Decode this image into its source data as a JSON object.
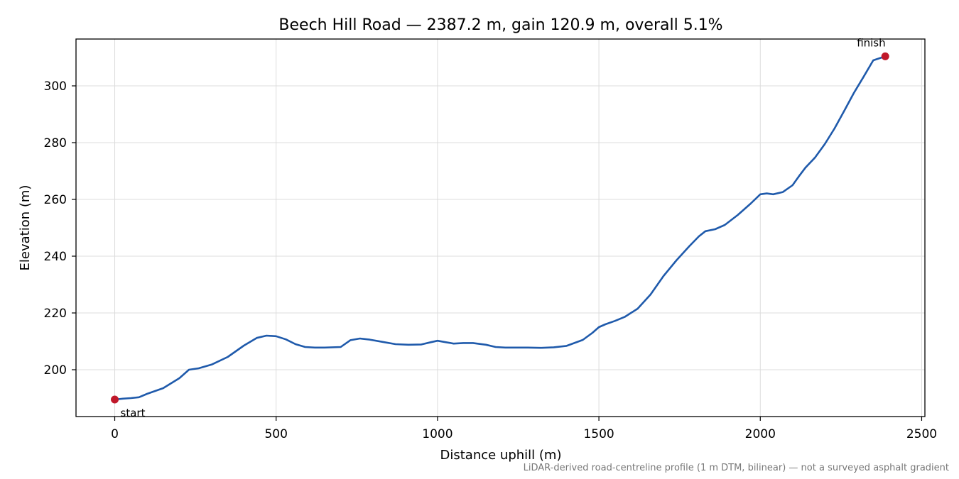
{
  "chart_data": {
    "type": "line",
    "title": "Beech Hill Road — 2387.2 m, gain 120.9 m, overall 5.1%",
    "xlabel": "Distance uphill (m)",
    "ylabel": "Elevation (m)",
    "xlim": [
      -120,
      2510
    ],
    "ylim": [
      183.5,
      316.5
    ],
    "xticks": [
      0,
      500,
      1000,
      1500,
      2000,
      2500
    ],
    "xtick_labels": [
      "0",
      "500",
      "1000",
      "1500",
      "2000",
      "2500"
    ],
    "yticks": [
      200,
      220,
      240,
      260,
      280,
      300
    ],
    "ytick_labels": [
      "200",
      "220",
      "240",
      "260",
      "280",
      "300"
    ],
    "grid": true,
    "line_color": "#1f5aab",
    "marker_color": "#c0182a",
    "series": [
      {
        "x": [
          0,
          25,
          50,
          75,
          100,
          150,
          200,
          230,
          260,
          300,
          350,
          400,
          440,
          470,
          500,
          530,
          560,
          590,
          620,
          650,
          700,
          730,
          760,
          790,
          830,
          870,
          910,
          950,
          980,
          1000,
          1020,
          1050,
          1080,
          1110,
          1150,
          1180,
          1210,
          1240,
          1280,
          1320,
          1360,
          1400,
          1450,
          1480,
          1500,
          1520,
          1550,
          1580,
          1620,
          1660,
          1700,
          1740,
          1780,
          1810,
          1830,
          1860,
          1890,
          1930,
          1970,
          2000,
          2020,
          2040,
          2070,
          2100,
          2120,
          2140,
          2170,
          2200,
          2230,
          2260,
          2290,
          2320,
          2350,
          2387.2
        ],
        "y": [
          189.5,
          189.8,
          190.0,
          190.3,
          191.5,
          193.5,
          197.0,
          200.0,
          200.5,
          201.8,
          204.5,
          208.5,
          211.2,
          212.0,
          211.8,
          210.7,
          209.0,
          208.0,
          207.8,
          207.8,
          208.0,
          210.4,
          211.0,
          210.6,
          209.8,
          209.0,
          208.8,
          208.9,
          209.7,
          210.2,
          209.8,
          209.2,
          209.4,
          209.4,
          208.8,
          208.0,
          207.8,
          207.8,
          207.8,
          207.7,
          207.9,
          208.4,
          210.5,
          213.0,
          215.0,
          216.0,
          217.2,
          218.6,
          221.5,
          226.5,
          233.0,
          238.5,
          243.5,
          247.0,
          248.8,
          249.5,
          251.0,
          254.5,
          258.5,
          261.8,
          262.1,
          261.8,
          262.6,
          265.0,
          268.2,
          271.2,
          274.8,
          279.5,
          285.0,
          291.2,
          297.5,
          303.2,
          309.0,
          310.4
        ]
      }
    ],
    "annotations": [
      {
        "text": "start",
        "x": 0,
        "y": 189.5
      },
      {
        "text": "finish",
        "x": 2387.2,
        "y": 310.4
      }
    ],
    "footnote": "LiDAR-derived road-centreline profile (1 m DTM, bilinear) — not a surveyed asphalt gradient"
  }
}
